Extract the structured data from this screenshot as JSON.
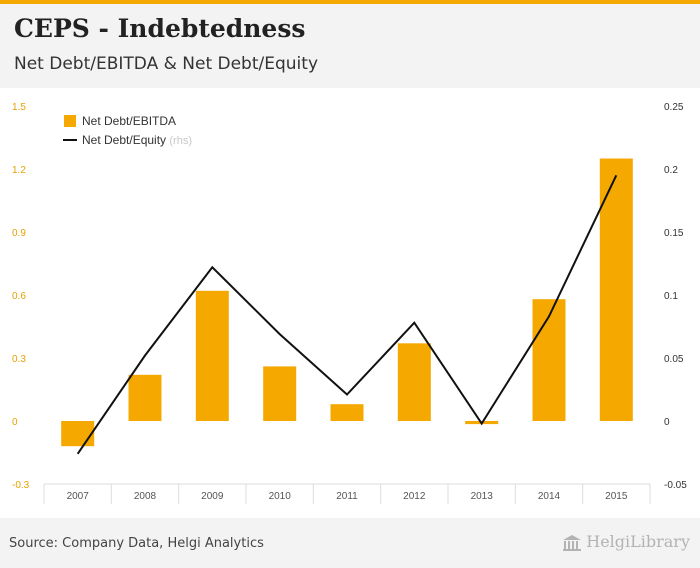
{
  "header": {
    "title": "CEPS - Indebtedness",
    "subtitle": "Net Debt/EBITDA & Net Debt/Equity"
  },
  "footer": {
    "source": "Source: Company Data, Helgi Analytics",
    "logo_text": "HelgiLibrary"
  },
  "colors": {
    "bar": "#f5a800",
    "line": "#111111",
    "left_axis_text": "#e8a000",
    "right_axis_text": "#333333",
    "background": "#f3f3f3"
  },
  "chart_data": {
    "type": "bar",
    "categories": [
      "2007",
      "2008",
      "2009",
      "2010",
      "2011",
      "2012",
      "2013",
      "2014",
      "2015"
    ],
    "series": [
      {
        "name": "Net Debt/EBITDA",
        "type": "bar",
        "axis": "left",
        "values": [
          -0.12,
          0.22,
          0.62,
          0.26,
          0.08,
          0.37,
          -0.015,
          0.58,
          1.25
        ]
      },
      {
        "name": "Net Debt/Equity",
        "legend_suffix": "(rhs)",
        "type": "line",
        "axis": "right",
        "values": [
          -0.026,
          0.052,
          0.122,
          0.069,
          0.021,
          0.078,
          -0.002,
          0.083,
          0.195
        ]
      }
    ],
    "y_left": {
      "min": -0.3,
      "max": 1.5,
      "ticks": [
        "-0.3",
        "0",
        "0.3",
        "0.6",
        "0.9",
        "1.2",
        "1.5"
      ]
    },
    "y_right": {
      "min": -0.05,
      "max": 0.25,
      "ticks": [
        "-0.05",
        "0",
        "0.05",
        "0.1",
        "0.15",
        "0.2",
        "0.25"
      ]
    },
    "legend_position": "top-left",
    "grid": false
  }
}
